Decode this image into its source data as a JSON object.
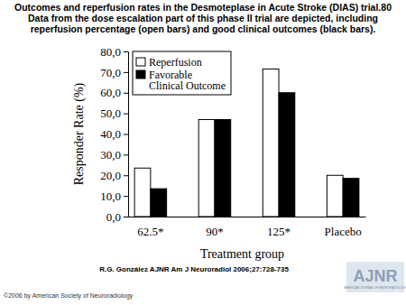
{
  "chart_data": {
    "type": "bar",
    "title": "Outcomes and reperfusion rates in the Desmoteplase in Acute Stroke (DIAS) trial.80 Data from the dose escalation part of this phase II trial are depicted, including reperfusion percentage (open bars) and good clinical outcomes (black bars).",
    "x_label": "Treatment group",
    "y_label": "Responder Rate (%)",
    "categories": [
      "62.5*",
      "90*",
      "125*",
      "Placebo"
    ],
    "series": [
      {
        "name": "Reperfusion",
        "color": "#ffffff",
        "values": [
          23.5,
          47,
          71.5,
          20
        ]
      },
      {
        "name": "Favorable Clinical Outcome",
        "color": "#000000",
        "values": [
          13.5,
          47,
          60,
          18.5
        ]
      }
    ],
    "ylim": [
      0,
      80
    ],
    "yticks": [
      {
        "value": 0,
        "label": "0,0"
      },
      {
        "value": 10,
        "label": "10,0"
      },
      {
        "value": 20,
        "label": "20,0"
      },
      {
        "value": 30,
        "label": "30,0"
      },
      {
        "value": 40,
        "label": "40,0"
      },
      {
        "value": 50,
        "label": "50,0"
      },
      {
        "value": 60,
        "label": "60,0"
      },
      {
        "value": 70,
        "label": "70,0"
      },
      {
        "value": 80,
        "label": "80,0"
      }
    ],
    "grid": false,
    "legend": "upper left",
    "annotations": [
      "R.G. González AJNR Am J Neuroradiol 2006;27:728-735",
      "©2006 by American Society of Neuroradiology",
      "AJNR",
      "AMERICAN JOURNAL OF NEURORADIOLOGY"
    ]
  }
}
